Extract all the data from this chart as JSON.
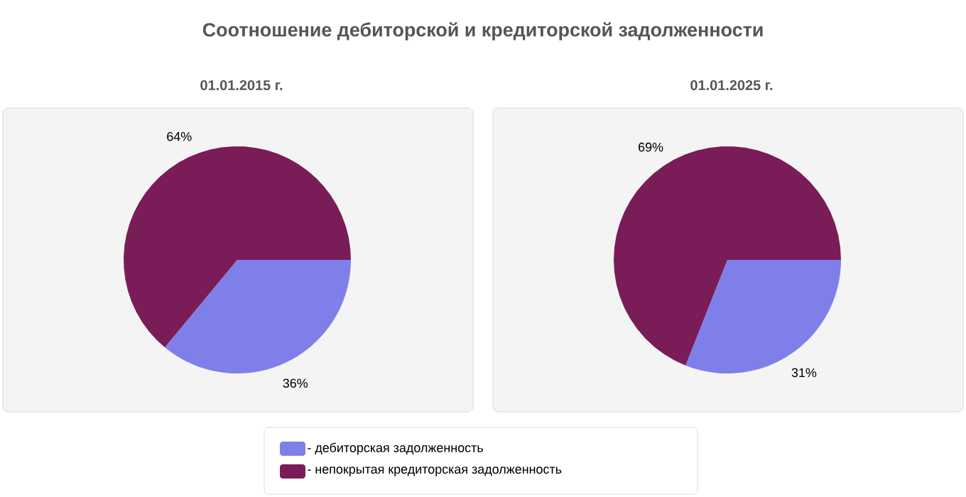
{
  "chart_data": [
    {
      "type": "pie",
      "title": "Соотношение дебиторской и кредиторской задолженности",
      "subtitle": "01.01.2015 г.",
      "categories": [
        "- дебиторская задолженность",
        "- непокрытая кредиторская задолженность"
      ],
      "values": [
        36,
        64
      ],
      "colors": [
        "#7f7fea",
        "#7a1c57"
      ],
      "value_labels": [
        "36%",
        "64%"
      ],
      "legend": "bottom"
    },
    {
      "type": "pie",
      "subtitle": "01.01.2025 г.",
      "categories": [
        null,
        null
      ],
      "values": [
        31,
        69
      ],
      "colors": [
        "#7f7fea",
        "#7a1c57"
      ],
      "value_labels": [
        "31%",
        "69%"
      ]
    }
  ]
}
